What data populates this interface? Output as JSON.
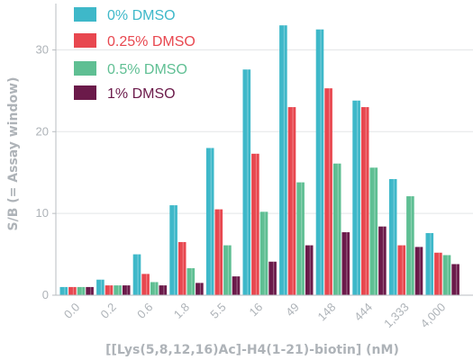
{
  "chart_data": {
    "type": "bar",
    "title": "",
    "xlabel": "[[Lys(5,8,12,16)Ac]-H4(1-21)-biotin] (nM)",
    "ylabel": "S/B (= Assay window)",
    "ylim": [
      0,
      35
    ],
    "yticks": [
      "0",
      "10",
      "20",
      "30"
    ],
    "ytick_values": [
      0,
      10,
      20,
      30
    ],
    "grid": true,
    "legend_position": "top-left",
    "categories": [
      "0.0",
      "0.2",
      "0.6",
      "1.8",
      "5.5",
      "16",
      "49",
      "148",
      "444",
      "1,333",
      "4,000"
    ],
    "series": [
      {
        "name": "0% DMSO",
        "color": "#3eb8c9",
        "values": [
          1.0,
          1.9,
          5.0,
          11.0,
          18.0,
          27.6,
          33.0,
          32.5,
          23.8,
          14.2,
          7.6
        ]
      },
      {
        "name": "0.25% DMSO",
        "color": "#e8474f",
        "values": [
          1.0,
          1.2,
          2.6,
          6.5,
          10.5,
          17.3,
          23.0,
          25.3,
          23.0,
          6.1,
          5.2
        ]
      },
      {
        "name": "0.5% DMSO",
        "color": "#5fbf93",
        "values": [
          1.0,
          1.2,
          1.6,
          3.3,
          6.1,
          10.2,
          13.8,
          16.1,
          15.6,
          12.1,
          4.9
        ]
      },
      {
        "name": "1% DMSO",
        "color": "#6b1a4a",
        "values": [
          1.0,
          1.2,
          1.2,
          1.5,
          2.3,
          4.1,
          6.1,
          7.7,
          8.4,
          5.9,
          3.8
        ]
      }
    ]
  }
}
